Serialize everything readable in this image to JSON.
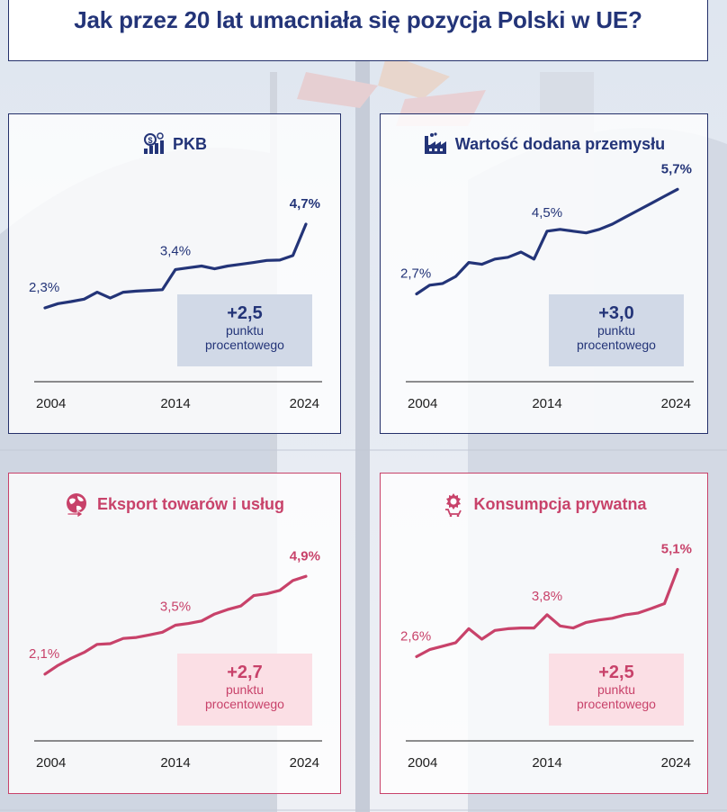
{
  "title": "Jak przez 20 lat umacniała się pozycja Polski w UE?",
  "colors": {
    "navy": "#233478",
    "pink": "#c8426a"
  },
  "panels": [
    {
      "id": "p1",
      "title": "PKB",
      "icon": "gdp-coins-icon",
      "theme": "blue",
      "summary": {
        "value": "+2,5",
        "unit_line1": "punktu",
        "unit_line2": "procentowego"
      },
      "chart_data": {
        "type": "line",
        "title": "PKB",
        "x": [
          2004,
          2005,
          2006,
          2007,
          2008,
          2009,
          2010,
          2011,
          2012,
          2013,
          2014,
          2015,
          2016,
          2017,
          2018,
          2019,
          2020,
          2021,
          2022,
          2023,
          2024
        ],
        "values": [
          2.3,
          2.42,
          2.48,
          2.55,
          2.75,
          2.58,
          2.75,
          2.78,
          2.8,
          2.82,
          3.4,
          3.45,
          3.5,
          3.42,
          3.5,
          3.55,
          3.6,
          3.66,
          3.67,
          3.8,
          4.7
        ],
        "x_ticks": [
          "2004",
          "2014",
          "2024"
        ],
        "labels": [
          {
            "x": 2004,
            "text": "2,3%"
          },
          {
            "x": 2014,
            "text": "3,4%"
          },
          {
            "x": 2024,
            "text": "4,7%"
          }
        ]
      }
    },
    {
      "id": "p2",
      "title": "Wartość dodana przemysłu",
      "icon": "factory-icon",
      "theme": "blue",
      "summary": {
        "value": "+3,0",
        "unit_line1": "punktu",
        "unit_line2": "procentowego"
      },
      "chart_data": {
        "type": "line",
        "title": "Wartość dodana przemysłu",
        "x": [
          2004,
          2005,
          2006,
          2007,
          2008,
          2009,
          2010,
          2011,
          2012,
          2013,
          2014,
          2015,
          2016,
          2017,
          2018,
          2019,
          2020,
          2021,
          2022,
          2023,
          2024
        ],
        "values": [
          2.7,
          2.95,
          3.0,
          3.2,
          3.6,
          3.55,
          3.7,
          3.75,
          3.9,
          3.7,
          4.5,
          4.55,
          4.5,
          4.45,
          4.55,
          4.7,
          4.9,
          5.1,
          5.3,
          5.5,
          5.7
        ],
        "x_ticks": [
          "2004",
          "2014",
          "2024"
        ],
        "labels": [
          {
            "x": 2004,
            "text": "2,7%"
          },
          {
            "x": 2014,
            "text": "4,5%"
          },
          {
            "x": 2024,
            "text": "5,7%"
          }
        ]
      }
    },
    {
      "id": "p3",
      "title": "Eksport towarów i usług",
      "icon": "globe-export-icon",
      "theme": "pink",
      "summary": {
        "value": "+2,7",
        "unit_line1": "punktu",
        "unit_line2": "procentowego"
      },
      "chart_data": {
        "type": "line",
        "title": "Eksport towarów i usług",
        "x": [
          2004,
          2005,
          2006,
          2007,
          2008,
          2009,
          2010,
          2011,
          2012,
          2013,
          2014,
          2015,
          2016,
          2017,
          2018,
          2019,
          2020,
          2021,
          2022,
          2023,
          2024
        ],
        "values": [
          2.1,
          2.35,
          2.55,
          2.72,
          2.95,
          2.97,
          3.12,
          3.15,
          3.22,
          3.3,
          3.5,
          3.55,
          3.62,
          3.82,
          3.95,
          4.05,
          4.35,
          4.4,
          4.5,
          4.78,
          4.9
        ],
        "x_ticks": [
          "2004",
          "2014",
          "2024"
        ],
        "labels": [
          {
            "x": 2004,
            "text": "2,1%"
          },
          {
            "x": 2014,
            "text": "3,5%"
          },
          {
            "x": 2024,
            "text": "4,9%"
          }
        ]
      }
    },
    {
      "id": "p4",
      "title": "Konsumpcja prywatna",
      "icon": "shopping-cart-icon",
      "theme": "pink",
      "summary": {
        "value": "+2,5",
        "unit_line1": "punktu",
        "unit_line2": "procentowego"
      },
      "chart_data": {
        "type": "line",
        "title": "Konsumpcja prywatna",
        "x": [
          2004,
          2005,
          2006,
          2007,
          2008,
          2009,
          2010,
          2011,
          2012,
          2013,
          2014,
          2015,
          2016,
          2017,
          2018,
          2019,
          2020,
          2021,
          2022,
          2023,
          2024
        ],
        "values": [
          2.6,
          2.8,
          2.9,
          3.0,
          3.4,
          3.1,
          3.35,
          3.4,
          3.42,
          3.42,
          3.8,
          3.48,
          3.42,
          3.58,
          3.65,
          3.7,
          3.8,
          3.85,
          3.98,
          4.12,
          5.1
        ],
        "x_ticks": [
          "2004",
          "2014",
          "2024"
        ],
        "labels": [
          {
            "x": 2004,
            "text": "2,6%"
          },
          {
            "x": 2014,
            "text": "3,8%"
          },
          {
            "x": 2024,
            "text": "5,1%"
          }
        ]
      }
    }
  ]
}
